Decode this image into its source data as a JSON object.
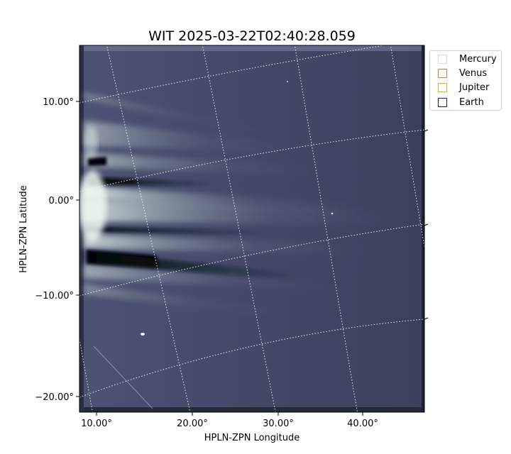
{
  "title": "WIT 2025-03-22T02:40:28.059",
  "axes": {
    "xlabel": "HPLN-ZPN Longitude",
    "ylabel": "HPLN-ZPN Latitude",
    "xticks": [
      "10.00°",
      "20.00°",
      "30.00°",
      "40.00°"
    ],
    "yticks": [
      "10.00°",
      "0.00°",
      "−10.00°",
      "−20.00°"
    ]
  },
  "legend": {
    "items": [
      {
        "label": "Mercury",
        "color": "#d9d9d9"
      },
      {
        "label": "Venus",
        "color": "#e07b39"
      },
      {
        "label": "Jupiter",
        "color": "#e6a817"
      },
      {
        "label": "Earth",
        "color": "#1a1a6e"
      }
    ]
  },
  "colors": {
    "background": "#3c4160",
    "streamer_light": "#dfeee8",
    "streamer_dark": "#0a0c14",
    "grid": "#ffffff"
  }
}
